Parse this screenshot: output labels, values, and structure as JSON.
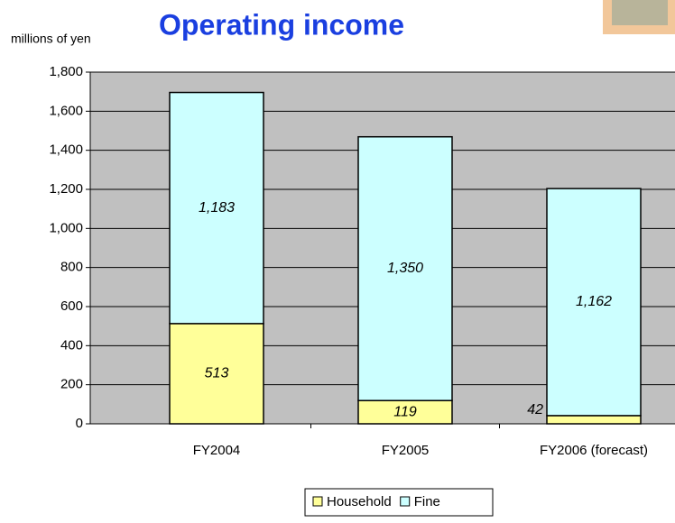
{
  "chart_data": {
    "type": "stacked_bar",
    "title": "Operating income",
    "y_label": "millions of yen",
    "categories": [
      "FY2004",
      "FY2005",
      "FY2006 (forecast)"
    ],
    "series": [
      {
        "name": "Household",
        "color": "#ffff99",
        "values": [
          513,
          119,
          42
        ]
      },
      {
        "name": "Fine",
        "color": "#ccffff",
        "values": [
          1183,
          1350,
          1162
        ],
        "value_labels": [
          "1,183",
          "1,350",
          "1,162"
        ]
      }
    ],
    "ylim": [
      0,
      1800
    ],
    "yticks": [
      0,
      200,
      400,
      600,
      800,
      {
        "value": 1000,
        "label": "1,000"
      },
      {
        "value": 1200,
        "label": "1,200"
      },
      {
        "value": 1400,
        "label": "1,400"
      },
      {
        "value": 1600,
        "label": "1,600"
      },
      {
        "value": 1800,
        "label": "1,800"
      }
    ],
    "grid": true,
    "legend": "bottom"
  }
}
